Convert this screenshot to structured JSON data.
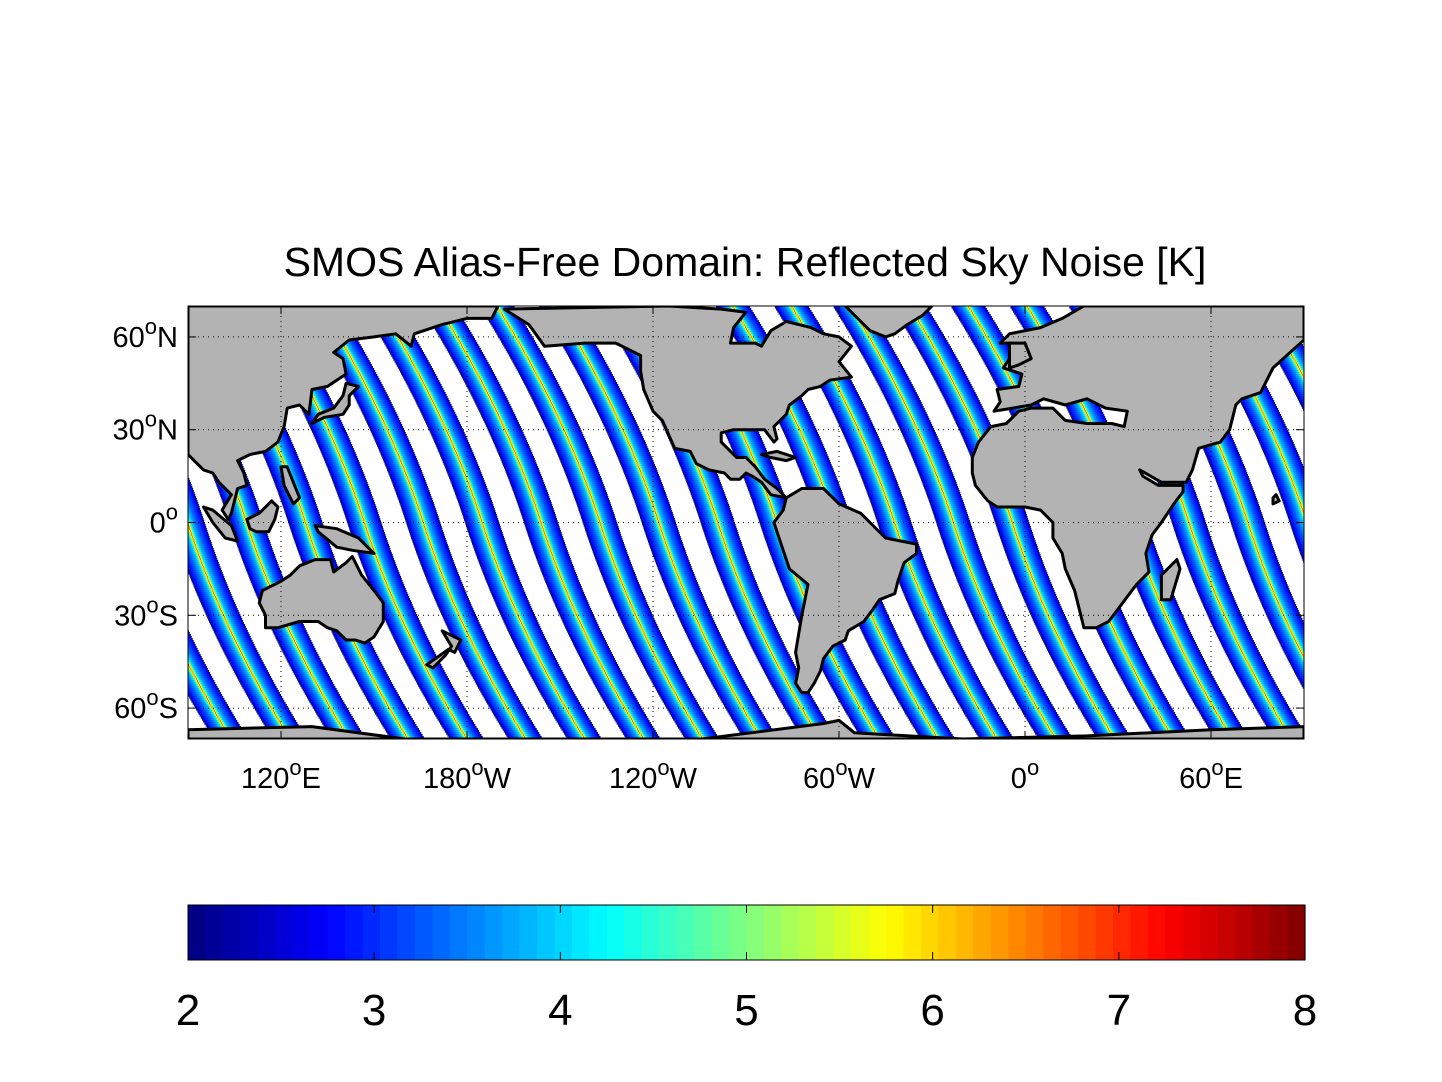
{
  "chart_data": {
    "type": "heatmap",
    "title": "SMOS Alias-Free Domain: Reflected Sky Noise [K]",
    "projection": "equirectangular",
    "xlim_lon": [
      90,
      450
    ],
    "ylim_lat": [
      -70,
      70
    ],
    "xticks": [
      {
        "lon": 120,
        "deg": "120",
        "hem": "E"
      },
      {
        "lon": 180,
        "deg": "180",
        "hem": "W"
      },
      {
        "lon": 240,
        "deg": "120",
        "hem": "W"
      },
      {
        "lon": 300,
        "deg": "60",
        "hem": "W"
      },
      {
        "lon": 360,
        "deg": "0",
        "hem": ""
      },
      {
        "lon": 420,
        "deg": "60",
        "hem": "E"
      }
    ],
    "yticks": [
      {
        "lat": 60,
        "deg": "60",
        "hem": "N"
      },
      {
        "lat": 30,
        "deg": "30",
        "hem": "N"
      },
      {
        "lat": 0,
        "deg": "0",
        "hem": ""
      },
      {
        "lat": -30,
        "deg": "30",
        "hem": "S"
      },
      {
        "lat": -60,
        "deg": "60",
        "hem": "S"
      }
    ],
    "grid": true,
    "colormap": "jet",
    "colorbar": {
      "placement": "bottom",
      "range": [
        2,
        8
      ],
      "ticks": [
        "2",
        "3",
        "4",
        "5",
        "6",
        "7",
        "8"
      ]
    },
    "swaths": {
      "count": 19,
      "spacing_deg": 19,
      "first_center_lon_at_equator": 109,
      "width_deg": 11,
      "center_value": 7.6,
      "edge_value": 2.2,
      "lat_extent": [
        -70,
        70
      ]
    },
    "colors": {
      "land": "#b3b3b3",
      "coast": "#000000",
      "no_data": "#ffffff"
    }
  }
}
